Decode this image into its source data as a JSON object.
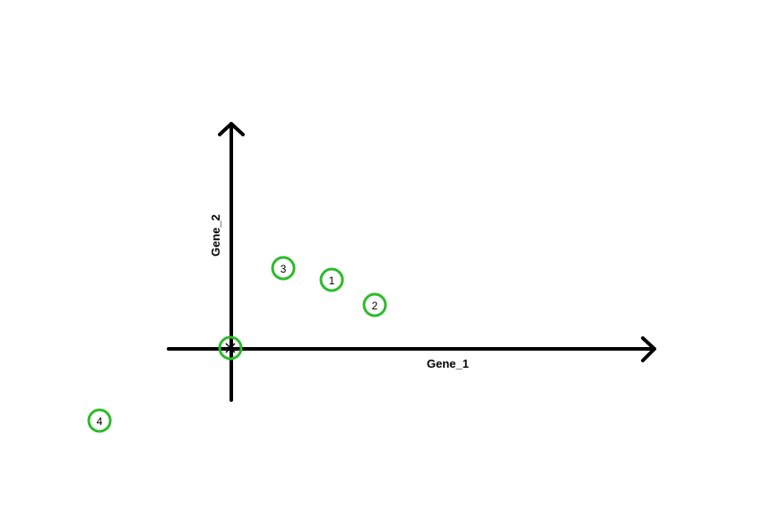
{
  "diagram": {
    "axes": {
      "x_label": "Gene_1",
      "y_label": "Gene_2"
    },
    "point_color": "#2dbb2d",
    "axis_color": "#000000",
    "points": [
      {
        "label": "1"
      },
      {
        "label": "2"
      },
      {
        "label": "3"
      },
      {
        "label": "4"
      },
      {
        "label": ""
      }
    ]
  }
}
